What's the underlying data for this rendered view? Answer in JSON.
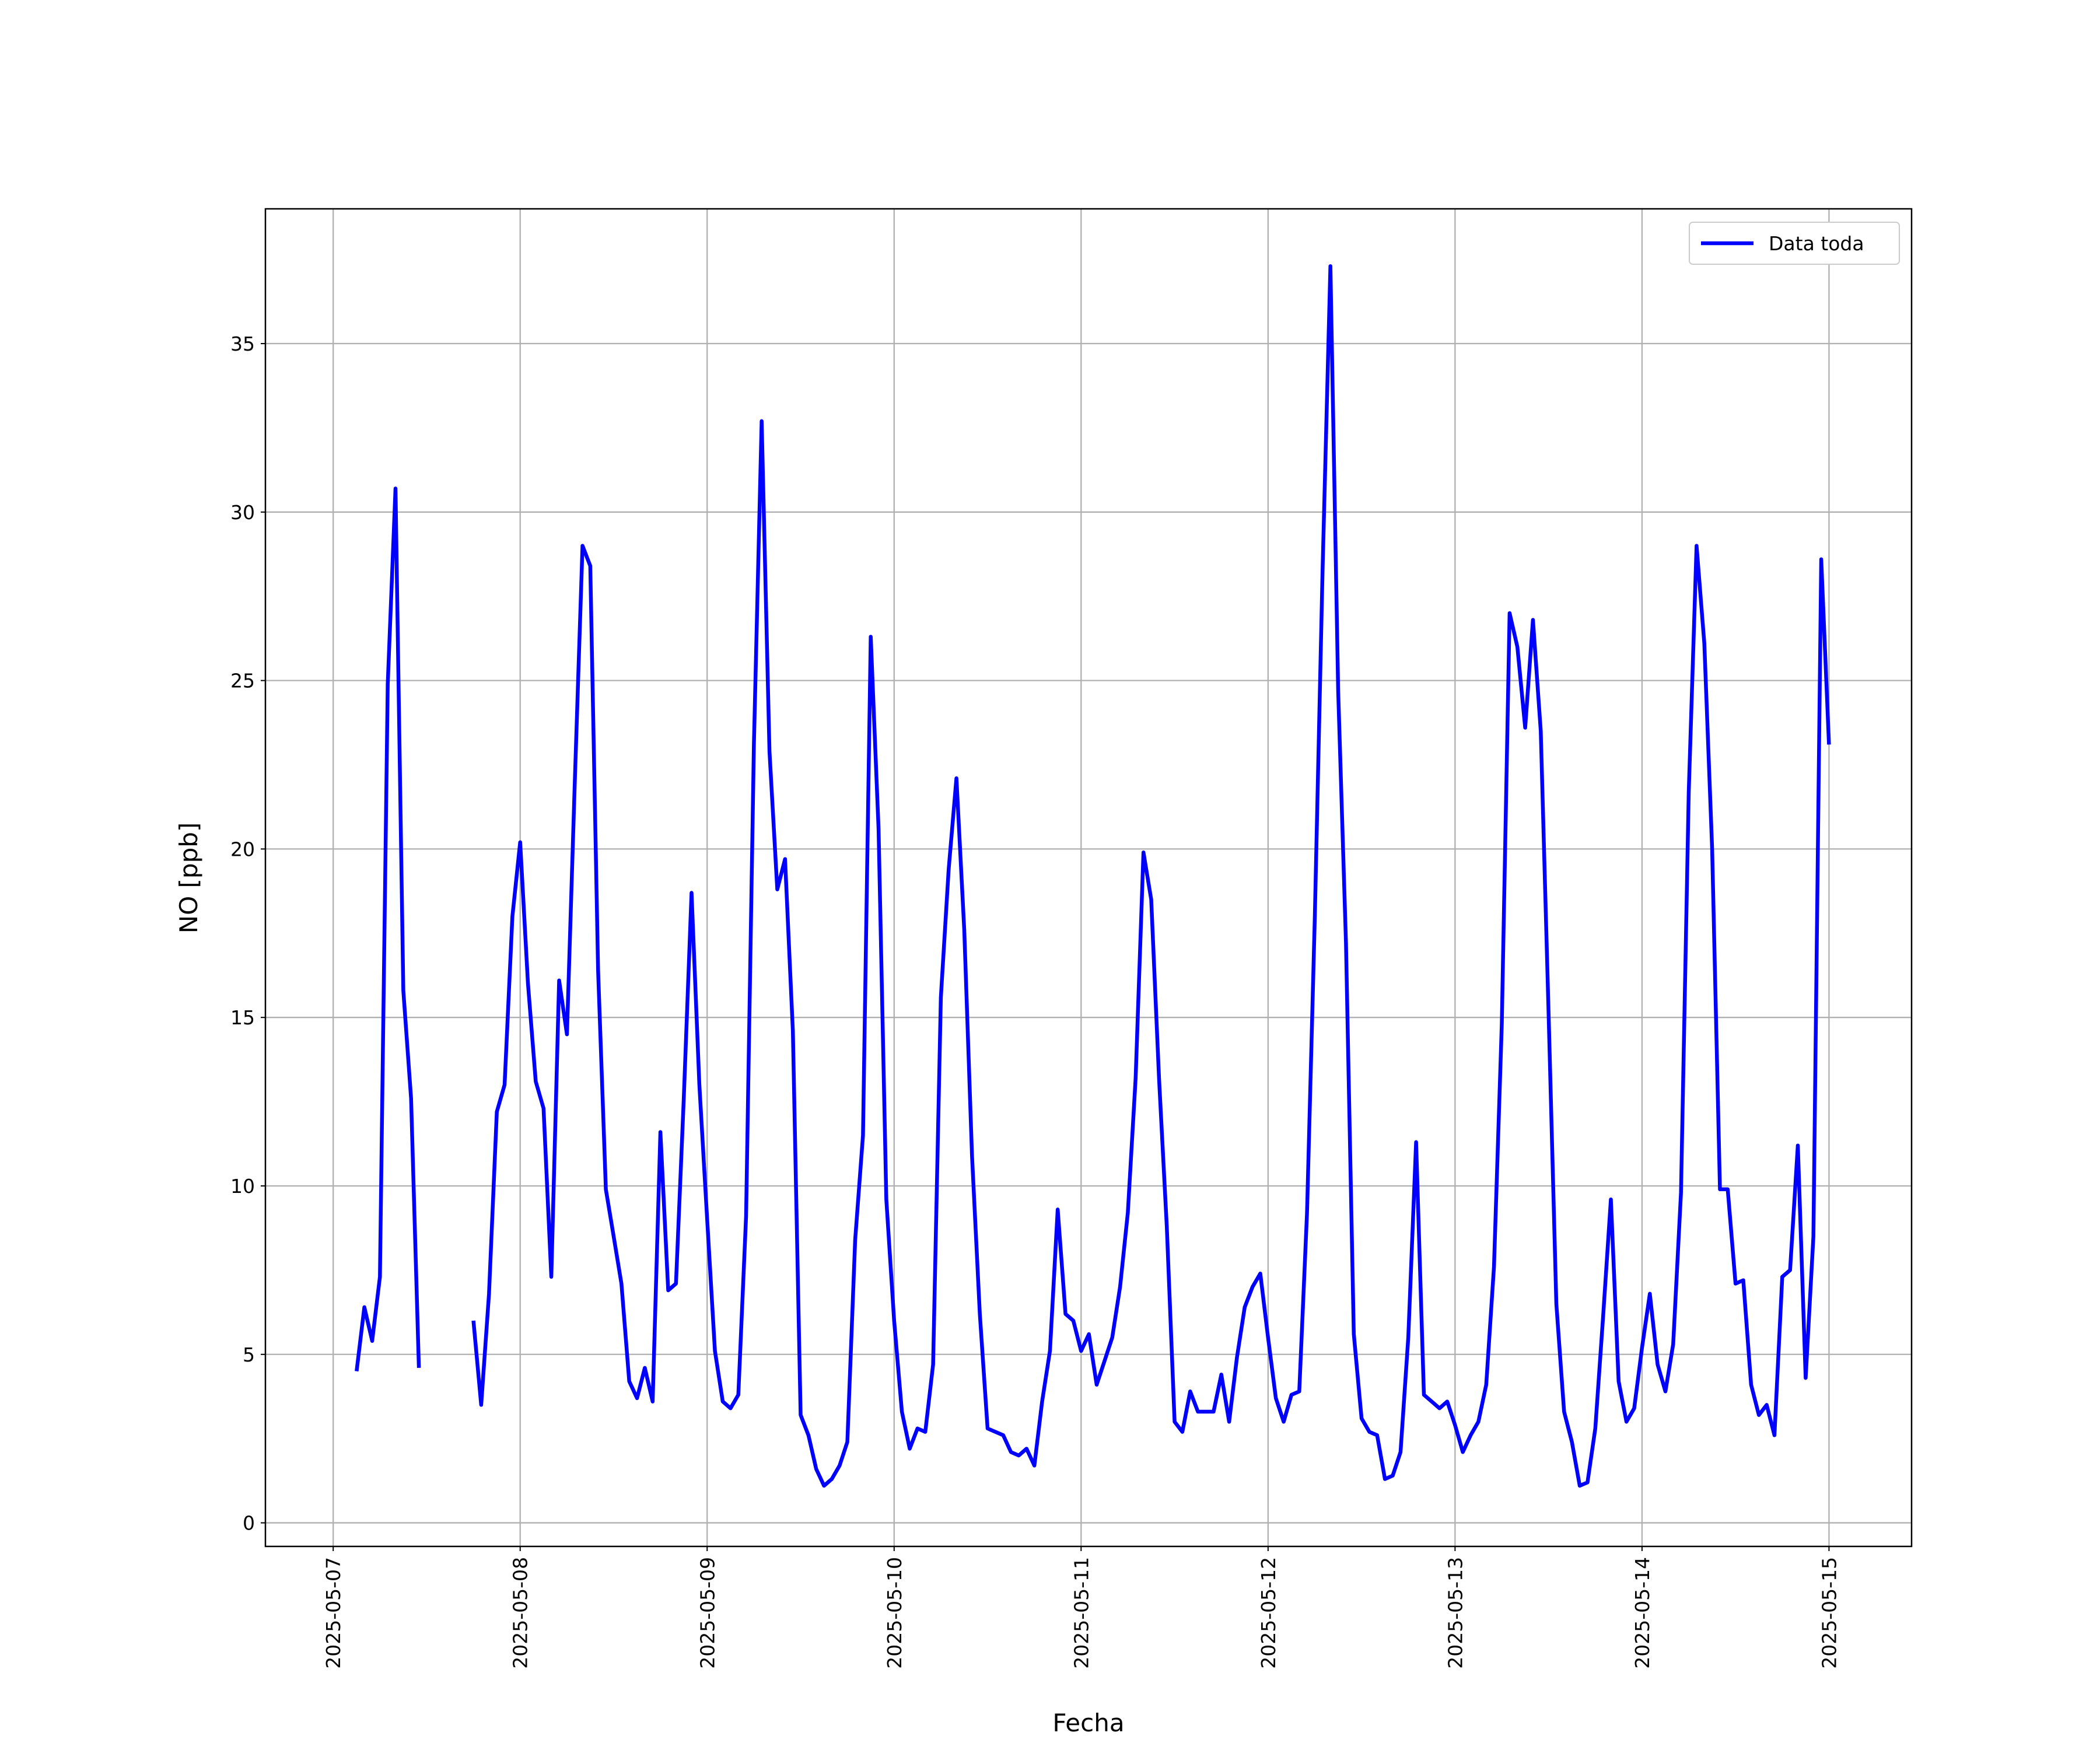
{
  "chart_data": {
    "type": "line",
    "xlabel": "Fecha",
    "ylabel": "NO [ppb]",
    "x": [
      3,
      4,
      5,
      6,
      7,
      8,
      9,
      10,
      11,
      12,
      13,
      14,
      15,
      16,
      17,
      18,
      19,
      20,
      21,
      22,
      23,
      24,
      25,
      26,
      27,
      28,
      29,
      30,
      31,
      32,
      33,
      34,
      35,
      36,
      37,
      38,
      39,
      40,
      41,
      42,
      43,
      44,
      45,
      46,
      47,
      48,
      49,
      50,
      51,
      52,
      53,
      54,
      55,
      56,
      57,
      58,
      59,
      60,
      61,
      62,
      63,
      64,
      65,
      66,
      67,
      68,
      69,
      70,
      71,
      72,
      73,
      74,
      75,
      76,
      77,
      78,
      79,
      80,
      81,
      82,
      83,
      84,
      85,
      86,
      87,
      88,
      89,
      90,
      91,
      92,
      93,
      94,
      95,
      96,
      97,
      98,
      99,
      100,
      101,
      102,
      103,
      104,
      105,
      106,
      107,
      108,
      109,
      110,
      111,
      112,
      113,
      114,
      115,
      116,
      117,
      118,
      119,
      120,
      121,
      122,
      123,
      124,
      125,
      126,
      127,
      128,
      129,
      130,
      131,
      132,
      133,
      134,
      135,
      136,
      137,
      138,
      139,
      140,
      141,
      142,
      143,
      144,
      145,
      146,
      147,
      148,
      149,
      150,
      151,
      152,
      153,
      154,
      155,
      156,
      157,
      158,
      159,
      160,
      161,
      162,
      163,
      164,
      165,
      166,
      167,
      168,
      169,
      170,
      171,
      172,
      173,
      174,
      175,
      176,
      177,
      178,
      179,
      180,
      181,
      182,
      183,
      184,
      185,
      186,
      187,
      188,
      189,
      190,
      191,
      192
    ],
    "series": [
      {
        "name": "Data toda",
        "color": "#0000ff",
        "values": [
          4.5,
          6.4,
          5.4,
          7.3,
          24.9,
          30.7,
          15.8,
          12.6,
          4.6,
          null,
          null,
          null,
          null,
          null,
          null,
          6.0,
          3.5,
          6.8,
          12.2,
          13.0,
          18.0,
          20.2,
          16.0,
          13.1,
          12.3,
          7.3,
          16.1,
          14.5,
          21.9,
          29.0,
          28.4,
          16.4,
          9.9,
          8.5,
          7.1,
          4.2,
          3.7,
          4.6,
          3.6,
          11.6,
          6.9,
          7.1,
          12.6,
          18.7,
          13.0,
          9.0,
          5.1,
          3.6,
          3.4,
          3.8,
          9.1,
          23.1,
          32.7,
          22.9,
          18.8,
          19.7,
          14.6,
          3.2,
          2.6,
          1.6,
          1.1,
          1.3,
          1.7,
          2.4,
          8.4,
          11.5,
          26.3,
          20.6,
          9.6,
          6.0,
          3.3,
          2.2,
          2.8,
          2.7,
          4.7,
          15.6,
          19.4,
          22.1,
          17.6,
          10.9,
          6.2,
          2.8,
          2.7,
          2.6,
          2.1,
          2.0,
          2.2,
          1.7,
          3.6,
          5.1,
          9.3,
          6.2,
          6.0,
          5.1,
          5.6,
          4.1,
          4.8,
          5.5,
          7.0,
          9.2,
          13.2,
          19.9,
          18.5,
          13.2,
          8.8,
          3.0,
          2.7,
          3.9,
          3.3,
          3.3,
          3.3,
          4.4,
          3.0,
          4.9,
          6.4,
          7.0,
          7.4,
          5.5,
          3.7,
          3.0,
          3.8,
          3.9,
          9.2,
          18.0,
          28.3,
          37.3,
          24.7,
          17.2,
          5.6,
          3.1,
          2.7,
          2.6,
          1.3,
          1.4,
          2.1,
          5.5,
          11.3,
          3.8,
          3.6,
          3.4,
          3.6,
          2.9,
          2.1,
          2.6,
          3.0,
          4.1,
          7.6,
          14.8,
          27.0,
          26.0,
          23.6,
          26.8,
          23.5,
          15.2,
          6.5,
          3.3,
          2.4,
          1.1,
          1.2,
          2.8,
          6.1,
          9.6,
          4.2,
          3.0,
          3.4,
          5.2,
          6.8,
          4.7,
          3.9,
          5.3,
          9.8,
          21.7,
          29.0,
          26.1,
          20.0,
          9.9,
          9.9,
          7.1,
          7.2,
          4.1,
          3.2,
          3.5,
          2.6,
          7.3,
          7.5,
          11.2,
          4.3,
          8.5,
          28.6,
          23.1
        ]
      }
    ],
    "xlim": [
      -8.7,
      202.6
    ],
    "xticks": [
      {
        "value": 0,
        "label": "2025-05-07"
      },
      {
        "value": 24,
        "label": "2025-05-08"
      },
      {
        "value": 48,
        "label": "2025-05-09"
      },
      {
        "value": 72,
        "label": "2025-05-10"
      },
      {
        "value": 96,
        "label": "2025-05-11"
      },
      {
        "value": 120,
        "label": "2025-05-12"
      },
      {
        "value": 144,
        "label": "2025-05-13"
      },
      {
        "value": 168,
        "label": "2025-05-14"
      },
      {
        "value": 192,
        "label": "2025-05-15"
      }
    ],
    "ylim": [
      -0.7,
      39.0
    ],
    "yticks": [
      0,
      5,
      10,
      15,
      20,
      25,
      30,
      35
    ],
    "grid": true,
    "legend": "upper right"
  }
}
